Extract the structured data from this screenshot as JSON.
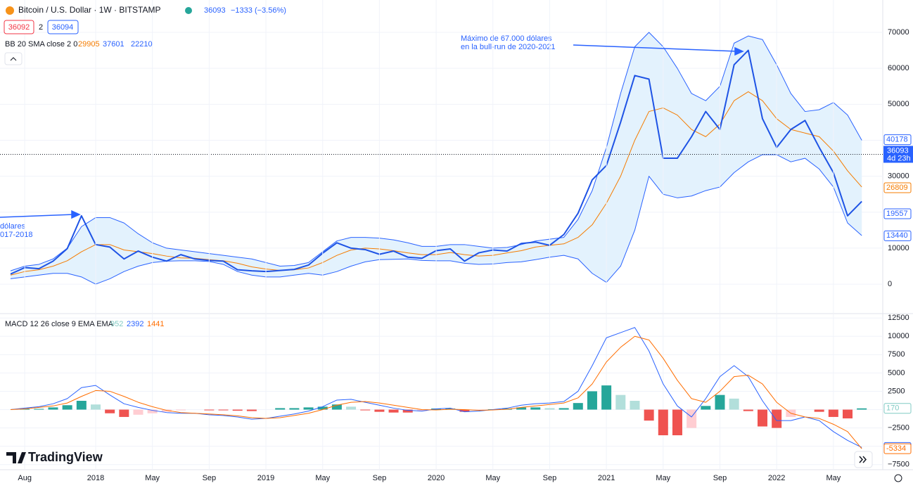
{
  "header": {
    "symbol": "Bitcoin / U.S. Dollar · 1W · BITSTAMP",
    "last": 36093,
    "change": "−1333 (−3.56%)",
    "bid": 36092,
    "spread": 2,
    "ask": 36094,
    "bb_title": "BB 20 SMA close 2 0",
    "bb_values": [
      29905,
      37601,
      22210
    ],
    "macd_title": "MACD 12 26 close 9 EMA EMA",
    "macd_values": [
      952,
      2392,
      1441
    ],
    "logo": "TradingView"
  },
  "chart_data": [
    {
      "type": "line",
      "x": [
        "2017-07",
        "2017-08",
        "2017-09",
        "2017-10",
        "2017-11",
        "2017-12",
        "2018-01",
        "2018-02",
        "2018-03",
        "2018-04",
        "2018-05",
        "2018-06",
        "2018-07",
        "2018-08",
        "2018-09",
        "2018-10",
        "2018-11",
        "2018-12",
        "2019-01",
        "2019-02",
        "2019-03",
        "2019-04",
        "2019-05",
        "2019-06",
        "2019-07",
        "2019-08",
        "2019-09",
        "2019-10",
        "2019-11",
        "2019-12",
        "2020-01",
        "2020-02",
        "2020-03",
        "2020-04",
        "2020-05",
        "2020-06",
        "2020-07",
        "2020-08",
        "2020-09",
        "2020-10",
        "2020-11",
        "2020-12",
        "2021-01",
        "2021-02",
        "2021-03",
        "2021-04",
        "2021-05",
        "2021-06",
        "2021-07",
        "2021-08",
        "2021-09",
        "2021-10",
        "2021-11",
        "2021-12",
        "2022-01",
        "2022-02",
        "2022-03",
        "2022-04",
        "2022-05",
        "2022-06",
        "2022-07"
      ],
      "ylim": [
        -8000,
        79000
      ],
      "yticks": [
        0,
        10000,
        20000,
        30000,
        40000,
        50000,
        60000,
        70000
      ],
      "grid": true,
      "series": [
        {
          "color": "#f57c00",
          "width": 1,
          "values": [
            2500,
            3500,
            4000,
            5000,
            6500,
            9000,
            11000,
            11000,
            9500,
            9000,
            8500,
            7800,
            7300,
            7200,
            6800,
            6500,
            5800,
            4800,
            4200,
            3800,
            4000,
            4500,
            6000,
            8000,
            9500,
            10000,
            9800,
            9300,
            8700,
            8200,
            8200,
            8800,
            8200,
            7800,
            8000,
            8700,
            9300,
            10300,
            10800,
            11200,
            13000,
            16500,
            22500,
            30000,
            40000,
            48000,
            49000,
            47000,
            43000,
            41000,
            44500,
            51000,
            53500,
            51000,
            46000,
            43000,
            42000,
            41000,
            37000,
            31500,
            27000
          ]
        },
        {
          "color": "#2962ff",
          "width": 1,
          "fill": "#e3f2fd",
          "values": [
            3700,
            5000,
            5500,
            7000,
            10000,
            16000,
            18500,
            18500,
            17000,
            14000,
            11500,
            10000,
            9500,
            9000,
            8500,
            8000,
            7500,
            7000,
            6000,
            5000,
            5200,
            6000,
            9000,
            12000,
            13000,
            13000,
            12800,
            12300,
            11500,
            10500,
            10500,
            11000,
            11000,
            10500,
            10000,
            10200,
            11000,
            12000,
            12500,
            13000,
            18000,
            26000,
            38000,
            53000,
            66000,
            70000,
            66000,
            60000,
            53000,
            51000,
            55000,
            67000,
            69000,
            68000,
            61000,
            53000,
            48000,
            48500,
            50500,
            47000,
            40000
          ]
        },
        {
          "color": "#2962ff",
          "width": 1,
          "values": [
            1500,
            2000,
            2500,
            3000,
            3000,
            2000,
            0,
            1500,
            3500,
            5000,
            6000,
            6400,
            6500,
            6500,
            6300,
            5500,
            3500,
            2500,
            2000,
            2000,
            2500,
            3000,
            2500,
            3500,
            5000,
            6200,
            6800,
            6900,
            7000,
            6600,
            6500,
            6500,
            5800,
            5500,
            5600,
            6000,
            6200,
            6800,
            7500,
            8000,
            7000,
            3000,
            500,
            5000,
            15000,
            30000,
            25000,
            24000,
            24500,
            26000,
            27000,
            31000,
            34000,
            36000,
            36000,
            34000,
            35000,
            32000,
            27000,
            17000,
            13500
          ]
        },
        {
          "color": "#1e53e5",
          "width": 2,
          "values": [
            2800,
            4600,
            4300,
            6400,
            9900,
            19000,
            11000,
            10300,
            7000,
            9200,
            7500,
            6400,
            8200,
            7000,
            6600,
            6400,
            4000,
            3700,
            3500,
            3800,
            4100,
            5300,
            8600,
            11500,
            10000,
            9600,
            8300,
            9200,
            7500,
            7200,
            9300,
            9800,
            6400,
            8700,
            9500,
            9200,
            11300,
            11700,
            10800,
            13800,
            19700,
            29000,
            33000,
            45000,
            58000,
            57000,
            35000,
            35000,
            41000,
            48000,
            43000,
            61000,
            65000,
            46000,
            38000,
            43000,
            45500,
            38000,
            31000,
            19000,
            23000
          ]
        }
      ],
      "last_price": {
        "value": 36093,
        "label": "4d 23h"
      },
      "axis_badges": [
        {
          "value": 40178,
          "color": "#2962ff"
        },
        {
          "value": 26809,
          "color": "#f57c00"
        },
        {
          "value": 19557,
          "color": "#2962ff"
        },
        {
          "value": 13440,
          "color": "#2962ff"
        }
      ],
      "annotations": [
        [
          "Máximo de 67.000 dólares",
          "en la bull-run de 2020-2021"
        ],
        [
          "dólares",
          "017-2018"
        ]
      ]
    },
    {
      "type": "line",
      "x": [
        "2017-07",
        "2017-08",
        "2017-09",
        "2017-10",
        "2017-11",
        "2017-12",
        "2018-01",
        "2018-02",
        "2018-03",
        "2018-04",
        "2018-05",
        "2018-06",
        "2018-07",
        "2018-08",
        "2018-09",
        "2018-10",
        "2018-11",
        "2018-12",
        "2019-01",
        "2019-02",
        "2019-03",
        "2019-04",
        "2019-05",
        "2019-06",
        "2019-07",
        "2019-08",
        "2019-09",
        "2019-10",
        "2019-11",
        "2019-12",
        "2020-01",
        "2020-02",
        "2020-03",
        "2020-04",
        "2020-05",
        "2020-06",
        "2020-07",
        "2020-08",
        "2020-09",
        "2020-10",
        "2020-11",
        "2020-12",
        "2021-01",
        "2021-02",
        "2021-03",
        "2021-04",
        "2021-05",
        "2021-06",
        "2021-07",
        "2021-08",
        "2021-09",
        "2021-10",
        "2021-11",
        "2021-12",
        "2022-01",
        "2022-02",
        "2022-03",
        "2022-04",
        "2022-05",
        "2022-06",
        "2022-07"
      ],
      "ylim": [
        -8200,
        13000
      ],
      "yticks": [
        {
          "value": -7500,
          "label": "−7500"
        },
        {
          "value": -5000,
          "label": "−5000"
        },
        {
          "value": -2500,
          "label": "−2500"
        },
        0,
        2500,
        5000,
        7500,
        10000,
        12500
      ],
      "xticks": [
        {
          "value": "2017-08",
          "label": "Aug"
        },
        {
          "value": "2018-01",
          "label": "2018"
        },
        {
          "value": "2018-05",
          "label": "May"
        },
        {
          "value": "2018-09",
          "label": "Sep"
        },
        {
          "value": "2019-01",
          "label": "2019"
        },
        {
          "value": "2019-05",
          "label": "May"
        },
        {
          "value": "2019-09",
          "label": "Sep"
        },
        {
          "value": "2020-01",
          "label": "2020"
        },
        {
          "value": "2020-05",
          "label": "May"
        },
        {
          "value": "2020-09",
          "label": "Sep"
        },
        {
          "value": "2021-01",
          "label": "2021"
        },
        {
          "value": "2021-05",
          "label": "May"
        },
        {
          "value": "2021-09",
          "label": "Sep"
        },
        {
          "value": "2022-01",
          "label": "2022"
        },
        {
          "value": "2022-05",
          "label": "May"
        }
      ],
      "grid": true,
      "histogram": {
        "colors": [
          "#26a69a",
          "#b2dfdb",
          "#ef5350",
          "#ffcdd2"
        ],
        "values": [
          0,
          100,
          100,
          300,
          600,
          1200,
          700,
          -500,
          -1000,
          -700,
          -500,
          -300,
          -100,
          0,
          -100,
          -100,
          -150,
          -200,
          0,
          200,
          200,
          300,
          400,
          700,
          400,
          -100,
          -300,
          -400,
          -400,
          -200,
          150,
          150,
          -300,
          -100,
          50,
          150,
          300,
          300,
          200,
          200,
          900,
          2500,
          3300,
          2000,
          1200,
          -1500,
          -3500,
          -3500,
          -2500,
          500,
          2000,
          1500,
          -200,
          -2300,
          -2500,
          -1000,
          0,
          -300,
          -1000,
          -1200,
          170
        ]
      },
      "series": [
        {
          "color": "#2962ff",
          "width": 1,
          "values": [
            0,
            200,
            400,
            800,
            1500,
            3000,
            3300,
            2000,
            800,
            300,
            -100,
            -400,
            -500,
            -500,
            -700,
            -800,
            -1000,
            -1300,
            -1200,
            -900,
            -600,
            -200,
            400,
            1300,
            1400,
            1000,
            600,
            200,
            -100,
            -200,
            100,
            200,
            -300,
            -200,
            0,
            200,
            600,
            800,
            900,
            1100,
            2500,
            6000,
            9800,
            10500,
            11200,
            8000,
            3500,
            500,
            -1000,
            1500,
            4500,
            6000,
            4500,
            1200,
            -1500,
            -1500,
            -1000,
            -1500,
            -3000,
            -4200,
            -5163
          ]
        },
        {
          "color": "#ff6d00",
          "width": 1,
          "values": [
            0,
            100,
            300,
            500,
            900,
            1800,
            2600,
            2500,
            1800,
            1000,
            400,
            -100,
            -400,
            -500,
            -600,
            -700,
            -850,
            -1100,
            -1200,
            -1100,
            -800,
            -500,
            0,
            600,
            1000,
            1100,
            900,
            600,
            300,
            0,
            -50,
            50,
            0,
            -100,
            -50,
            50,
            300,
            500,
            700,
            900,
            1600,
            3500,
            6500,
            8500,
            10000,
            9500,
            7000,
            4000,
            1500,
            1000,
            2500,
            4500,
            4700,
            3500,
            1000,
            -500,
            -1000,
            -1200,
            -2000,
            -3000,
            -5334
          ]
        }
      ],
      "axis_badges": [
        {
          "value": 170,
          "color": "#80cbc4"
        },
        {
          "value": -5163,
          "color": "#2962ff"
        },
        {
          "value": -5334,
          "color": "#ff6d00"
        }
      ]
    }
  ]
}
